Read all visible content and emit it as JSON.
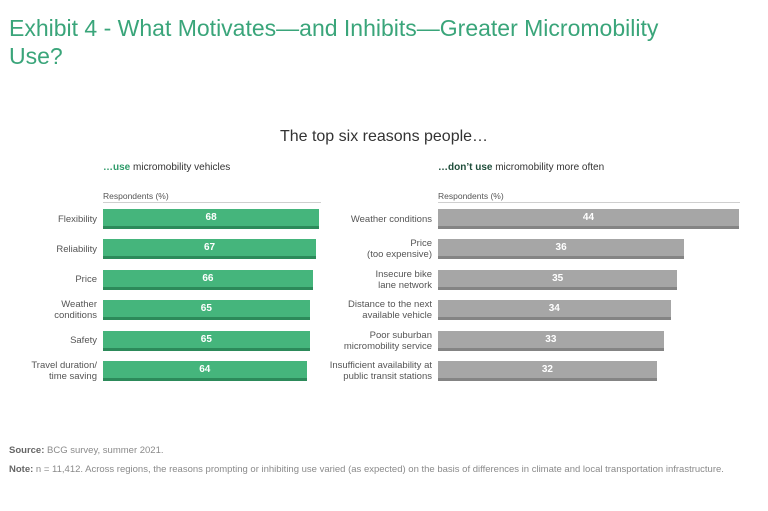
{
  "title": "Exhibit 4 - What Motivates—and Inhibits—Greater Micromobility Use?",
  "chart_data": [
    {
      "type": "bar",
      "orientation": "horizontal",
      "title": "The top six reasons people…",
      "panel_title_bold": "…use",
      "panel_title_rest": " micromobility vehicles",
      "axis_label": "Respondents (%)",
      "categories": [
        "Flexibility",
        "Reliability",
        "Price",
        "Weather\nconditions",
        "Safety",
        "Travel duration/\ntime saving"
      ],
      "values": [
        68,
        67,
        66,
        65,
        65,
        64
      ],
      "color": "#45b57c"
    },
    {
      "type": "bar",
      "orientation": "horizontal",
      "panel_title_bold": "…don’t use",
      "panel_title_rest": " micromobility more often",
      "axis_label": "Respondents (%)",
      "categories": [
        "Weather conditions",
        "Price\n(too expensive)",
        "Insecure bike\nlane network",
        "Distance to the next\navailable vehicle",
        "Poor suburban\nmicromobility service",
        "Insufficient availability at\npublic transit stations"
      ],
      "values": [
        44,
        36,
        35,
        34,
        33,
        32
      ],
      "color": "#a6a6a6"
    }
  ],
  "footer": {
    "source_label": "Source:",
    "source_text": " BCG survey, summer 2021.",
    "note_label": "Note:",
    "note_text": " n = 11,412. Across regions, the reasons prompting or inhibiting use varied (as expected) on the basis of differences in climate and local transportation infrastructure."
  }
}
